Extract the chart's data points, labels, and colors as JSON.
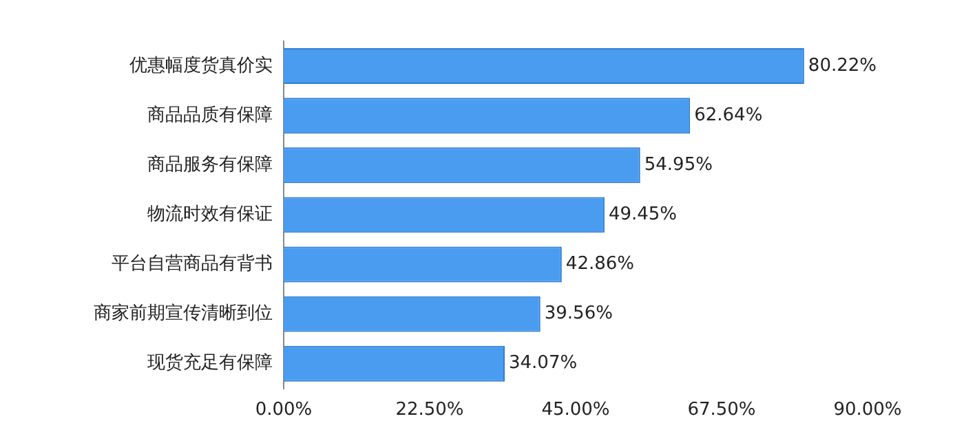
{
  "chart_data": {
    "type": "bar",
    "orientation": "horizontal",
    "categories": [
      "优惠幅度货真价实",
      "商品品质有保障",
      "商品服务有保障",
      "物流时效有保证",
      "平台自营商品有背书",
      "商家前期宣传清晰到位",
      "现货充足有保障"
    ],
    "values": [
      80.22,
      62.64,
      54.95,
      49.45,
      42.86,
      39.56,
      34.07
    ],
    "value_labels": [
      "80.22%",
      "62.64%",
      "54.95%",
      "49.45%",
      "42.86%",
      "39.56%",
      "34.07%"
    ],
    "color": "#4a9cf0",
    "xlim": [
      0,
      90
    ],
    "xticks": [
      {
        "value": 0,
        "label": "0.00%"
      },
      {
        "value": 22.5,
        "label": "22.50%"
      },
      {
        "value": 45,
        "label": "45.00%"
      },
      {
        "value": 67.5,
        "label": "67.50%"
      },
      {
        "value": 90,
        "label": "90.00%"
      }
    ],
    "grid": false,
    "legend": false
  }
}
